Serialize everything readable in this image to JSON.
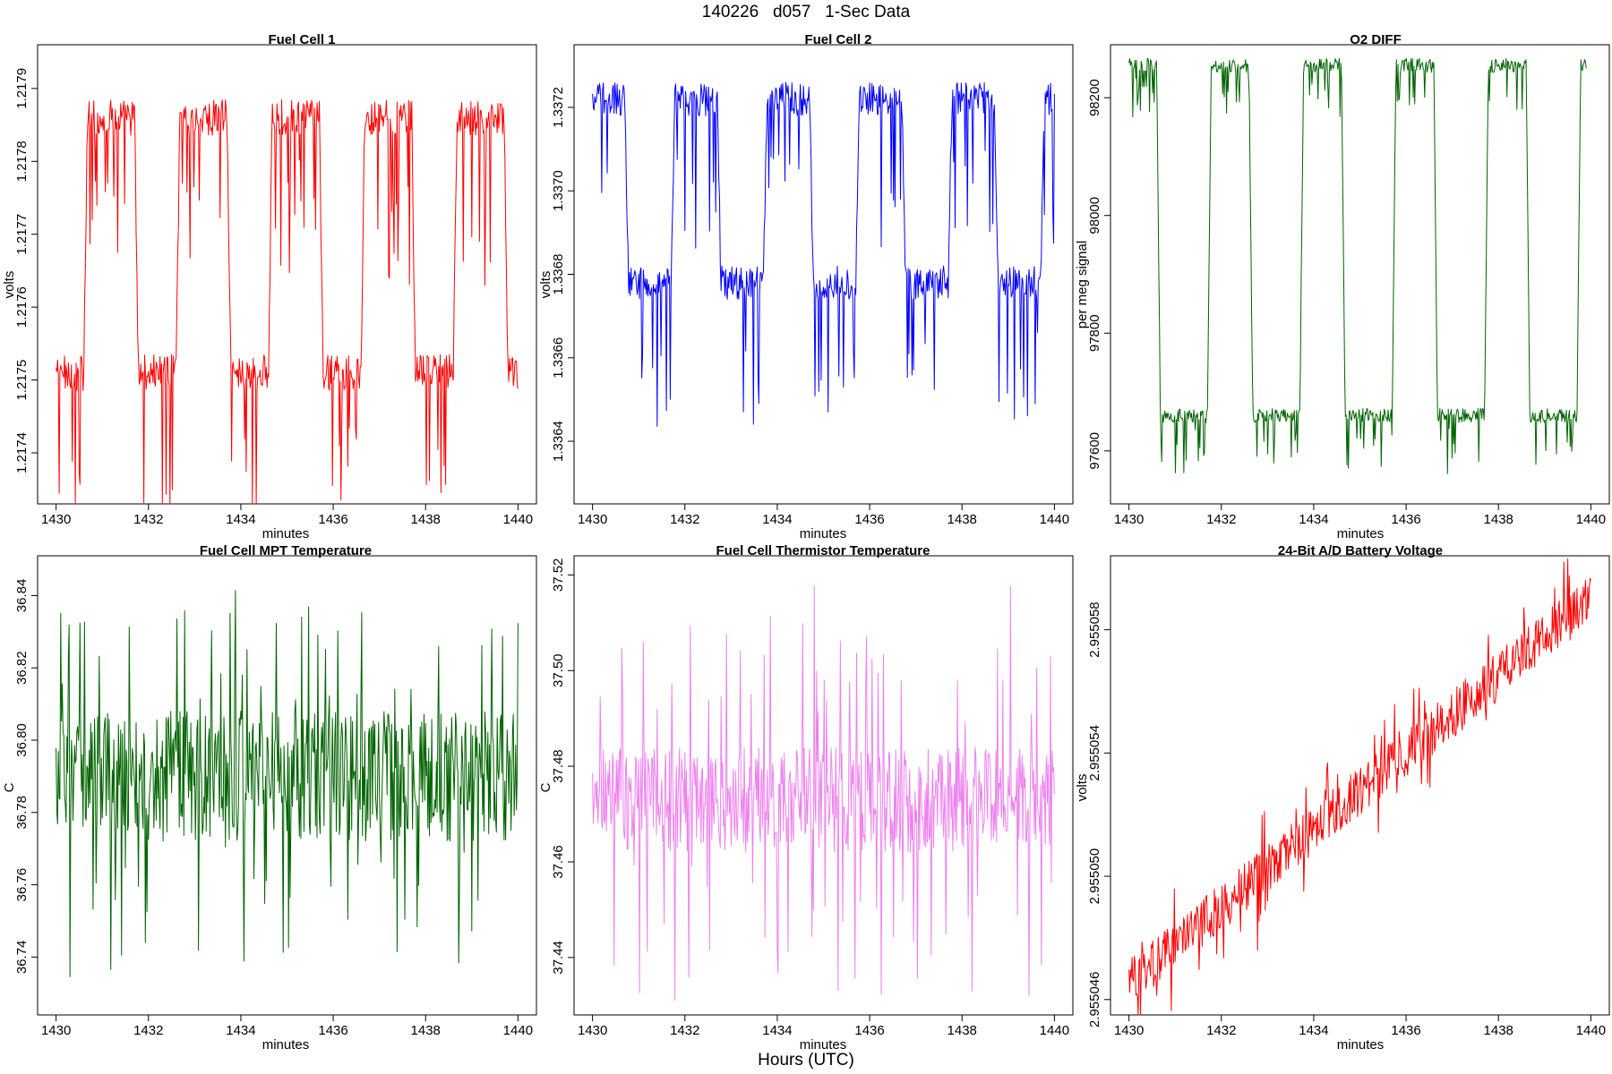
{
  "figure": {
    "title": "140226   d057   1-Sec Data",
    "bottom_label": "Hours (UTC)"
  },
  "chart_data": [
    {
      "type": "line",
      "title": "Fuel Cell 1",
      "xlabel": "minutes",
      "ylabel": "volts",
      "color": "#ff0000",
      "xlim": [
        1429.6,
        1440.4
      ],
      "ylim": [
        1.21733,
        1.21796
      ],
      "xticks": [
        "1430",
        "1432",
        "1434",
        "1436",
        "1438",
        "1440"
      ],
      "yticks": [
        "1.2174",
        "1.2175",
        "1.2176",
        "1.2177",
        "1.2178",
        "1.2179"
      ],
      "wave": {
        "kind": "square",
        "x0": 1430.0,
        "x1": 1440.0,
        "start_phase": "low",
        "transitions": [
          1430.6,
          1431.7,
          1432.6,
          1433.7,
          1434.6,
          1435.7,
          1436.6,
          1437.7,
          1438.6,
          1439.7
        ],
        "low": 1.21751,
        "high": 1.21786,
        "noise": 2.5e-05,
        "spike_dir": -1,
        "spike_depth": 0.00022
      }
    },
    {
      "type": "line",
      "title": "Fuel Cell 2",
      "xlabel": "minutes",
      "ylabel": "volts",
      "color": "#0000ff",
      "xlim": [
        1429.6,
        1440.4
      ],
      "ylim": [
        1.33625,
        1.33735
      ],
      "xticks": [
        "1430",
        "1432",
        "1434",
        "1436",
        "1438",
        "1440"
      ],
      "yticks": [
        "1.3364",
        "1.3366",
        "1.3368",
        "1.3370",
        "1.3372"
      ],
      "wave": {
        "kind": "square",
        "x0": 1430.0,
        "x1": 1440.0,
        "start_phase": "high",
        "transitions": [
          1430.7,
          1431.7,
          1432.7,
          1433.7,
          1434.7,
          1435.7,
          1436.7,
          1437.7,
          1438.7,
          1439.7
        ],
        "low": 1.33678,
        "high": 1.33722,
        "noise": 4e-05,
        "spike_dir": -1,
        "spike_depth": 0.00034
      }
    },
    {
      "type": "line",
      "title": "O2 DIFF",
      "xlabel": "minutes",
      "ylabel": "per meg signal",
      "color": "#006400",
      "xlim": [
        1429.6,
        1440.4
      ],
      "ylim": [
        97510,
        98290
      ],
      "xticks": [
        "1430",
        "1432",
        "1434",
        "1436",
        "1438",
        "1440"
      ],
      "yticks": [
        "97600",
        "97800",
        "98000",
        "98200"
      ],
      "wave": {
        "kind": "square",
        "x0": 1430.0,
        "x1": 1439.9,
        "start_phase": "high",
        "transitions": [
          1430.6,
          1431.7,
          1432.6,
          1433.7,
          1434.6,
          1435.7,
          1436.6,
          1437.7,
          1438.6,
          1439.7
        ],
        "low": 97660,
        "high": 98255,
        "noise": 12,
        "spike_dir": -1,
        "spike_depth": 90
      }
    },
    {
      "type": "line",
      "title": "Fuel Cell MPT Temperature",
      "xlabel": "minutes",
      "ylabel": "C",
      "color": "#006400",
      "xlim": [
        1429.6,
        1440.4
      ],
      "ylim": [
        36.724,
        36.851
      ],
      "xticks": [
        "1430",
        "1432",
        "1434",
        "1436",
        "1438",
        "1440"
      ],
      "yticks": [
        "36.74",
        "36.76",
        "36.78",
        "36.80",
        "36.82",
        "36.84"
      ],
      "wave": {
        "kind": "noise",
        "x0": 1430.0,
        "x1": 1440.0,
        "mean": 36.79,
        "amp": 0.018,
        "spike": 0.045,
        "seed": 11
      }
    },
    {
      "type": "line",
      "title": "Fuel Cell Thermistor Temperature",
      "xlabel": "minutes",
      "ylabel": "C",
      "color": "#ee82ee",
      "xlim": [
        1429.6,
        1440.4
      ],
      "ylim": [
        37.428,
        37.524
      ],
      "xticks": [
        "1430",
        "1432",
        "1434",
        "1436",
        "1438",
        "1440"
      ],
      "yticks": [
        "37.44",
        "37.46",
        "37.48",
        "37.50",
        "37.52"
      ],
      "wave": {
        "kind": "noise",
        "x0": 1430.0,
        "x1": 1440.0,
        "mean": 37.473,
        "amp": 0.011,
        "spike": 0.038,
        "seed": 29
      }
    },
    {
      "type": "line",
      "title": "24-Bit A/D Battery Voltage",
      "xlabel": "minutes",
      "ylabel": "volts",
      "color": "#ff0000",
      "xlim": [
        1429.6,
        1440.4
      ],
      "ylim": [
        2.9550455,
        2.9550604
      ],
      "xticks": [
        "1430",
        "1432",
        "1434",
        "1436",
        "1438",
        "1440"
      ],
      "yticks": [
        "2.955046",
        "2.955050",
        "2.955054",
        "2.955058"
      ],
      "wave": {
        "kind": "ramp",
        "x0": 1430.0,
        "x1": 1440.0,
        "start": 2.9550465,
        "end": 2.955059,
        "amp": 8e-07,
        "spike": 1.7e-06,
        "seed": 47
      }
    }
  ]
}
